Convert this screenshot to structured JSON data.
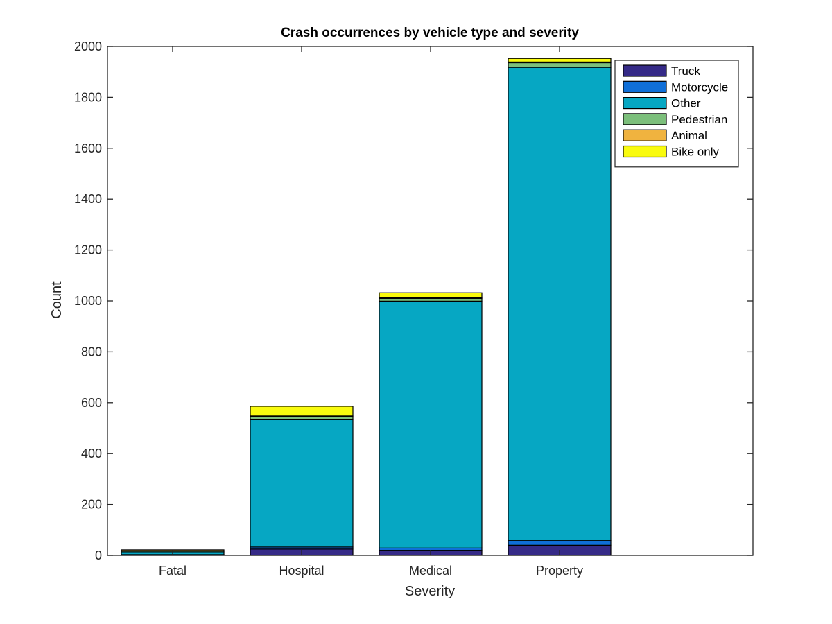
{
  "chart_data": {
    "type": "bar",
    "stacked": true,
    "title": "Crash occurrences by vehicle type and severity",
    "xlabel": "Severity",
    "ylabel": "Count",
    "categories": [
      "Fatal",
      "Hospital",
      "Medical",
      "Property"
    ],
    "ylim": [
      0,
      2000
    ],
    "yticks": [
      0,
      200,
      400,
      600,
      800,
      1000,
      1200,
      1400,
      1600,
      1800,
      2000
    ],
    "legend_position": "top-right",
    "grid": false,
    "series": [
      {
        "name": "Truck",
        "color": "#352a87",
        "values": [
          2,
          25,
          20,
          40
        ]
      },
      {
        "name": "Motorcycle",
        "color": "#0f6fd8",
        "values": [
          1,
          8,
          9,
          18
        ]
      },
      {
        "name": "Other",
        "color": "#06a7c3",
        "values": [
          11,
          500,
          970,
          1860
        ]
      },
      {
        "name": "Pedestrian",
        "color": "#7cbf7b",
        "values": [
          4,
          12,
          11,
          18
        ]
      },
      {
        "name": "Animal",
        "color": "#f0b33f",
        "values": [
          4,
          3,
          2,
          3
        ]
      },
      {
        "name": "Bike only",
        "color": "#f9fb0e",
        "values": [
          0,
          38,
          20,
          14
        ]
      }
    ]
  }
}
